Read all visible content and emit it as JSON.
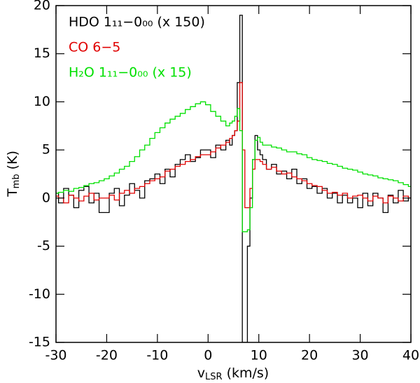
{
  "chart_data": {
    "type": "line",
    "xlabel": {
      "main": "v",
      "sub": "LSR",
      "rest": " (km/s)"
    },
    "ylabel": {
      "main": "T",
      "sub": "mb",
      "rest": " (K)"
    },
    "xlim": [
      -30,
      40
    ],
    "xticks": [
      -30,
      -20,
      -10,
      0,
      10,
      20,
      30,
      40
    ],
    "ylim": [
      -15,
      20
    ],
    "yticks": [
      -15,
      -10,
      -5,
      0,
      5,
      10,
      15,
      20
    ],
    "x": [
      -30,
      -29,
      -28,
      -27,
      -26,
      -25,
      -24,
      -23,
      -22,
      -21,
      -20,
      -19,
      -18,
      -17,
      -16,
      -15,
      -14,
      -13,
      -12,
      -11,
      -10,
      -9,
      -8,
      -7,
      -6,
      -5,
      -4,
      -3,
      -2,
      -1,
      0,
      1,
      2,
      3,
      4,
      4.5,
      5,
      5.5,
      6,
      6.5,
      7,
      7.5,
      8,
      8.5,
      9,
      9.5,
      10,
      10.5,
      11,
      12,
      13,
      14,
      15,
      16,
      17,
      18,
      19,
      20,
      21,
      22,
      23,
      24,
      25,
      26,
      27,
      28,
      29,
      30,
      31,
      32,
      33,
      34,
      35,
      36,
      37,
      38,
      39,
      40
    ],
    "series": [
      {
        "name": "HDO 1₁₁−0₀₀ (x 150)",
        "color": "#000000",
        "values": [
          0.5,
          -0.5,
          1,
          0.3,
          -1,
          0.8,
          1.2,
          -0.5,
          0.5,
          -1.5,
          -1.5,
          0.5,
          1,
          -0.8,
          0.3,
          1.5,
          0.8,
          0,
          1.8,
          2,
          2.5,
          1.5,
          3,
          2.2,
          3.5,
          4,
          4.5,
          3.8,
          4.2,
          5,
          5,
          4.2,
          5.5,
          5,
          6,
          5.5,
          6.5,
          7,
          12,
          19,
          -15,
          -15,
          -5,
          0,
          4,
          6.5,
          5,
          4.5,
          4,
          3,
          3.5,
          2.5,
          2.8,
          2,
          3,
          1.5,
          2,
          1,
          1.2,
          0.5,
          1,
          0,
          0.5,
          -0.5,
          0.3,
          -0.5,
          0,
          -1,
          0.5,
          -0.8,
          0.5,
          0,
          -1.5,
          0.3,
          -0.5,
          0.8,
          -0.3,
          0
        ]
      },
      {
        "name": "CO 6−5",
        "color": "#e00000",
        "values": [
          0.2,
          0,
          -0.5,
          0.3,
          0,
          -0.3,
          0.2,
          0.5,
          -0.2,
          0,
          0,
          0.3,
          -0.2,
          0.5,
          0.8,
          0.5,
          1,
          1.2,
          1.5,
          1.8,
          2,
          2.2,
          2.8,
          3,
          3.3,
          3.5,
          3.8,
          4,
          4.3,
          4.5,
          4.5,
          4.8,
          5.2,
          5.5,
          5.8,
          6.2,
          6.5,
          7,
          8,
          12,
          5,
          -1,
          -1,
          1,
          3,
          4,
          4,
          3.8,
          3.5,
          3,
          3.2,
          2.8,
          2.5,
          2.6,
          2.2,
          2,
          1.8,
          1.5,
          1.3,
          1.2,
          0.8,
          0.5,
          0.6,
          0.3,
          0.5,
          0,
          0.2,
          0.3,
          0,
          -0.3,
          0.2,
          0,
          -0.5,
          0.2,
          0,
          -0.3,
          0.2,
          0
        ]
      },
      {
        "name": "H₂O 1₁₁−0₀₀ (x 15)",
        "color": "#00e000",
        "values": [
          0.5,
          0.6,
          0.8,
          0.7,
          1,
          1.1,
          1.3,
          1.5,
          1.6,
          1.8,
          2,
          2.3,
          2.6,
          3,
          3.3,
          3.8,
          4.3,
          5,
          5.5,
          6.2,
          6.8,
          7.3,
          7.8,
          8.2,
          8.5,
          8.8,
          9.2,
          9.5,
          9.8,
          10,
          9.7,
          9,
          8.5,
          8,
          7.5,
          7.8,
          8,
          8.5,
          9.3,
          7,
          -3.5,
          -3.5,
          -3.3,
          -1,
          4,
          6,
          6.3,
          5.8,
          5.5,
          5.5,
          5.3,
          5.2,
          5,
          4.8,
          4.8,
          4.6,
          4.5,
          4.2,
          4,
          3.9,
          3.8,
          3.6,
          3.5,
          3.3,
          3.1,
          3,
          2.9,
          2.7,
          2.5,
          2.4,
          2.3,
          2.1,
          2,
          1.9,
          1.8,
          1.6,
          1.4,
          1.2
        ]
      }
    ]
  }
}
